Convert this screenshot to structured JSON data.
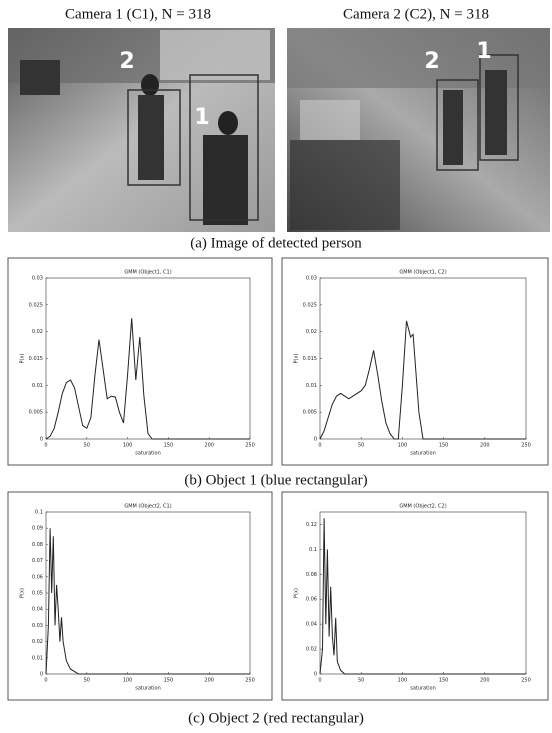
{
  "headings": [
    "Camera 1 (C1), N = 318",
    "Camera 2 (C2), N = 318"
  ],
  "photos": [
    {
      "labels": [
        "2",
        "1"
      ]
    },
    {
      "labels": [
        "2",
        "1"
      ]
    }
  ],
  "captions": [
    "(a) Image of detected person",
    "(b) Object 1 (blue rectangular)",
    "(c) Object 2 (red rectangular)"
  ],
  "chart_data": [
    {
      "type": "line",
      "title": "GMM (Object1, C1)",
      "x_label": "saturation",
      "y_label": "P(x)",
      "x": [
        0,
        5,
        10,
        15,
        20,
        25,
        30,
        35,
        40,
        45,
        50,
        55,
        60,
        65,
        70,
        75,
        80,
        85,
        90,
        95,
        100,
        105,
        110,
        115,
        120,
        125,
        130,
        250
      ],
      "values": [
        0,
        0.0005,
        0.002,
        0.005,
        0.0085,
        0.0105,
        0.011,
        0.0095,
        0.006,
        0.0025,
        0.002,
        0.004,
        0.012,
        0.0185,
        0.013,
        0.0075,
        0.008,
        0.0078,
        0.005,
        0.003,
        0.012,
        0.0225,
        0.011,
        0.019,
        0.008,
        0.001,
        0,
        0
      ],
      "color": "#222222",
      "xlim": [
        0,
        250
      ],
      "xticks": [
        0,
        50,
        100,
        150,
        200,
        250
      ],
      "ylim": [
        0,
        0.03
      ],
      "yticks": [
        0,
        0.005,
        0.01,
        0.015,
        0.02,
        0.025,
        0.03
      ]
    },
    {
      "type": "line",
      "title": "GMM (Object1, C2)",
      "x_label": "saturation",
      "y_label": "P(x)",
      "x": [
        0,
        5,
        10,
        15,
        20,
        25,
        30,
        35,
        40,
        45,
        50,
        55,
        60,
        65,
        70,
        75,
        80,
        85,
        90,
        95,
        100,
        105,
        110,
        113,
        120,
        125,
        250
      ],
      "values": [
        0,
        0.0015,
        0.004,
        0.0065,
        0.008,
        0.0085,
        0.008,
        0.0075,
        0.008,
        0.0085,
        0.009,
        0.01,
        0.013,
        0.0165,
        0.012,
        0.007,
        0.003,
        0.001,
        0,
        0,
        0.01,
        0.022,
        0.019,
        0.0195,
        0.005,
        0,
        0
      ],
      "color": "#222222",
      "xlim": [
        0,
        250
      ],
      "xticks": [
        0,
        50,
        100,
        150,
        200,
        250
      ],
      "ylim": [
        0,
        0.03
      ],
      "yticks": [
        0,
        0.005,
        0.01,
        0.015,
        0.02,
        0.025,
        0.03
      ]
    },
    {
      "type": "line",
      "title": "GMM (Object2, C1)",
      "x_label": "saturation",
      "y_label": "P(x)",
      "x": [
        0,
        3,
        5,
        7,
        9,
        11,
        13,
        15,
        17,
        19,
        21,
        25,
        30,
        40,
        250
      ],
      "values": [
        0,
        0.03,
        0.09,
        0.05,
        0.085,
        0.03,
        0.055,
        0.04,
        0.02,
        0.035,
        0.02,
        0.008,
        0.003,
        0,
        0
      ],
      "color": "#222222",
      "xlim": [
        0,
        250
      ],
      "xticks": [
        0,
        50,
        100,
        150,
        200,
        250
      ],
      "ylim": [
        0,
        0.1
      ],
      "yticks": [
        0,
        0.01,
        0.02,
        0.03,
        0.04,
        0.05,
        0.06,
        0.07,
        0.08,
        0.09,
        0.1
      ]
    },
    {
      "type": "line",
      "title": "GMM (Object2, C2)",
      "x_label": "saturation",
      "y_label": "P(x)",
      "x": [
        0,
        3,
        5,
        7,
        9,
        11,
        13,
        15,
        17,
        19,
        21,
        25,
        30,
        250
      ],
      "values": [
        0,
        0.02,
        0.125,
        0.04,
        0.1,
        0.03,
        0.07,
        0.03,
        0.015,
        0.045,
        0.01,
        0.003,
        0,
        0
      ],
      "color": "#222222",
      "xlim": [
        0,
        250
      ],
      "xticks": [
        0,
        50,
        100,
        150,
        200,
        250
      ],
      "ylim": [
        0,
        0.13
      ],
      "yticks": [
        0,
        0.02,
        0.04,
        0.06,
        0.08,
        0.1,
        0.12
      ]
    }
  ]
}
